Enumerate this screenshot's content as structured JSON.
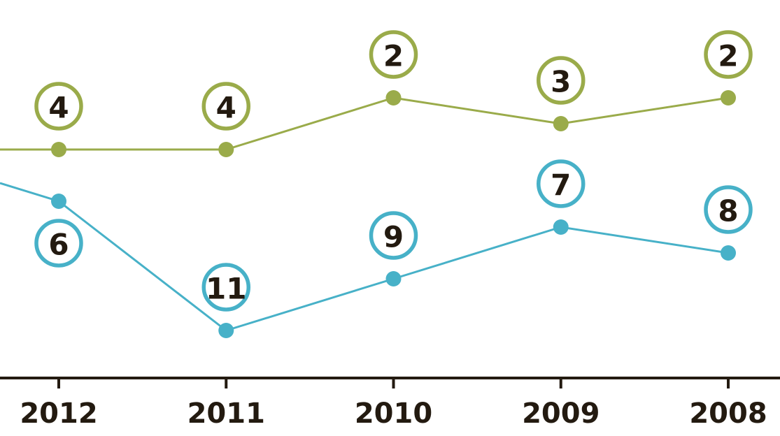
{
  "chart_data": {
    "type": "line",
    "title": "",
    "xlabel": "",
    "ylabel": "",
    "categories": [
      "2012",
      "2011",
      "2010",
      "2009",
      "2008"
    ],
    "y_axis": "rank, inverted (1 at top)",
    "grid": false,
    "series": [
      {
        "color": "#9aab4a",
        "values": [
          4,
          4,
          2,
          3,
          2
        ],
        "label_positions": [
          "above",
          "above",
          "above",
          "above",
          "above"
        ],
        "continues_left": true
      },
      {
        "color": "#47b1c8",
        "values": [
          6,
          11,
          9,
          7,
          8
        ],
        "label_positions": [
          "below",
          "above",
          "above",
          "above",
          "above"
        ],
        "continues_left": true
      }
    ],
    "axis_color": "#231a10"
  }
}
